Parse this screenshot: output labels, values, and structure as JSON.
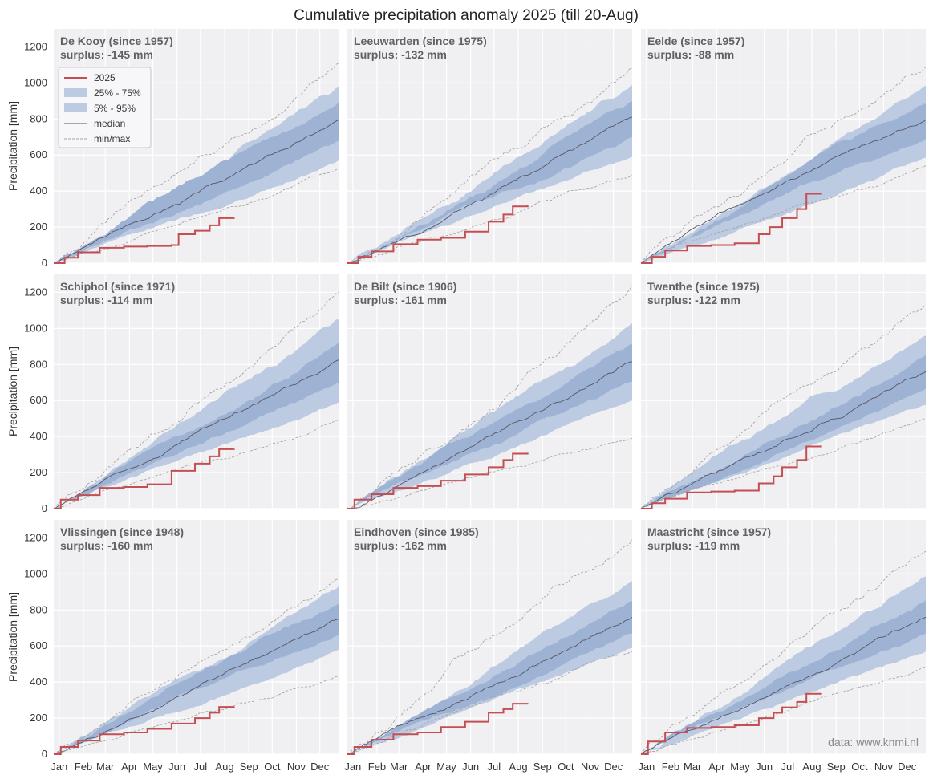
{
  "figure": {
    "title": "Cumulative precipitation anomaly 2025 (till 20-Aug)",
    "ylabel": "Precipitation [mm]",
    "watermark": "data: www.knmi.nl",
    "surplus_prefix": "surplus: ",
    "months": [
      "Jan",
      "Feb",
      "Mar",
      "Apr",
      "May",
      "Jun",
      "Jul",
      "Aug",
      "Sep",
      "Oct",
      "Nov",
      "Dec"
    ],
    "yticks": [
      0,
      200,
      400,
      600,
      800,
      1000,
      1200
    ],
    "legend": [
      {
        "key": "obs",
        "label": "2025"
      },
      {
        "key": "iqr",
        "label": "25% - 75%"
      },
      {
        "key": "p90",
        "label": " 5% - 95%"
      },
      {
        "key": "median",
        "label": "median"
      },
      {
        "key": "minmax",
        "label": "min/max"
      }
    ],
    "colors": {
      "background": "#ffffff",
      "panel": "#f0f0f3",
      "grid": "#ffffff",
      "band_outer": "#bccbe2",
      "band_inner": "#9eb3d4",
      "median": "#555566",
      "minmax": "#a5a5a5",
      "obs": "#c44e52",
      "text": "#333333",
      "label": "#616161"
    }
  },
  "chart_data": [
    {
      "type": "line",
      "station": "De Kooy",
      "since": "(since 1957)",
      "surplus": "-145 mm",
      "xlabel": "",
      "ylabel": "Precipitation [mm]",
      "ylim": [
        0,
        1300
      ],
      "median_end": 795,
      "p25_end": 680,
      "p75_end": 890,
      "p5_end": 570,
      "p95_end": 975,
      "min_end": 520,
      "max_end": 1110,
      "obs_dates": [
        "2025-01-01",
        "2025-01-15",
        "2025-02-01",
        "2025-03-01",
        "2025-04-01",
        "2025-05-01",
        "2025-06-01",
        "2025-06-10",
        "2025-07-01",
        "2025-07-20",
        "2025-08-01",
        "2025-08-20"
      ],
      "obs_values": [
        0,
        30,
        60,
        85,
        92,
        95,
        100,
        160,
        180,
        210,
        250,
        252
      ]
    },
    {
      "type": "line",
      "station": "Leeuwarden",
      "since": "(since 1975)",
      "surplus": "-132 mm",
      "xlabel": "",
      "ylabel": "Precipitation [mm]",
      "ylim": [
        0,
        1300
      ],
      "median_end": 810,
      "p25_end": 700,
      "p75_end": 900,
      "p5_end": 590,
      "p95_end": 990,
      "min_end": 490,
      "max_end": 1080,
      "obs_dates": [
        "2025-01-01",
        "2025-01-15",
        "2025-02-01",
        "2025-03-01",
        "2025-04-01",
        "2025-05-01",
        "2025-06-01",
        "2025-07-01",
        "2025-07-20",
        "2025-08-01",
        "2025-08-20"
      ],
      "obs_values": [
        0,
        35,
        65,
        105,
        130,
        140,
        175,
        230,
        270,
        315,
        322
      ]
    },
    {
      "type": "line",
      "station": "Eelde",
      "since": "(since 1957)",
      "surplus": "-88 mm",
      "xlabel": "",
      "ylabel": "Precipitation [mm]",
      "ylim": [
        0,
        1300
      ],
      "median_end": 795,
      "p25_end": 690,
      "p75_end": 885,
      "p5_end": 585,
      "p95_end": 985,
      "min_end": 540,
      "max_end": 1090,
      "obs_dates": [
        "2025-01-01",
        "2025-01-15",
        "2025-02-01",
        "2025-03-01",
        "2025-04-01",
        "2025-05-01",
        "2025-06-01",
        "2025-06-15",
        "2025-07-01",
        "2025-07-20",
        "2025-08-01",
        "2025-08-20"
      ],
      "obs_values": [
        0,
        35,
        70,
        95,
        100,
        110,
        160,
        200,
        250,
        300,
        385,
        388
      ]
    },
    {
      "type": "line",
      "station": "Schiphol",
      "since": "(since 1971)",
      "surplus": "-114 mm",
      "xlabel": "",
      "ylabel": "Precipitation [mm]",
      "ylim": [
        0,
        1300
      ],
      "median_end": 825,
      "p25_end": 700,
      "p75_end": 920,
      "p5_end": 590,
      "p95_end": 1050,
      "min_end": 490,
      "max_end": 1200,
      "obs_dates": [
        "2025-01-01",
        "2025-01-10",
        "2025-02-01",
        "2025-03-01",
        "2025-04-01",
        "2025-05-01",
        "2025-06-01",
        "2025-07-01",
        "2025-07-20",
        "2025-08-01",
        "2025-08-20"
      ],
      "obs_values": [
        0,
        50,
        75,
        115,
        120,
        135,
        210,
        250,
        290,
        330,
        332
      ]
    },
    {
      "type": "line",
      "station": "De Bilt",
      "since": "(since 1906)",
      "surplus": "-161 mm",
      "xlabel": "",
      "ylabel": "Precipitation [mm]",
      "ylim": [
        0,
        1300
      ],
      "median_end": 815,
      "p25_end": 705,
      "p75_end": 915,
      "p5_end": 600,
      "p95_end": 1030,
      "min_end": 390,
      "max_end": 1240,
      "obs_dates": [
        "2025-01-01",
        "2025-01-10",
        "2025-02-01",
        "2025-03-01",
        "2025-04-01",
        "2025-05-01",
        "2025-06-01",
        "2025-07-01",
        "2025-07-20",
        "2025-08-01",
        "2025-08-20"
      ],
      "obs_values": [
        0,
        50,
        80,
        115,
        125,
        155,
        190,
        230,
        270,
        305,
        310
      ]
    },
    {
      "type": "line",
      "station": "Twenthe",
      "since": "(since 1975)",
      "surplus": "-122 mm",
      "xlabel": "",
      "ylabel": "Precipitation [mm]",
      "ylim": [
        0,
        1300
      ],
      "median_end": 760,
      "p25_end": 665,
      "p75_end": 855,
      "p5_end": 575,
      "p95_end": 960,
      "min_end": 500,
      "max_end": 1130,
      "obs_dates": [
        "2025-01-01",
        "2025-01-15",
        "2025-02-01",
        "2025-03-01",
        "2025-04-01",
        "2025-05-01",
        "2025-06-01",
        "2025-06-20",
        "2025-07-01",
        "2025-07-20",
        "2025-08-01",
        "2025-08-20"
      ],
      "obs_values": [
        0,
        30,
        55,
        90,
        95,
        100,
        140,
        180,
        230,
        270,
        345,
        350
      ]
    },
    {
      "type": "line",
      "station": "Vlissingen",
      "since": "(since 1948)",
      "surplus": "-160 mm",
      "xlabel": "",
      "ylabel": "Precipitation [mm]",
      "ylim": [
        0,
        1300
      ],
      "median_end": 750,
      "p25_end": 660,
      "p75_end": 835,
      "p5_end": 580,
      "p95_end": 930,
      "min_end": 430,
      "max_end": 970,
      "obs_dates": [
        "2025-01-01",
        "2025-01-10",
        "2025-02-01",
        "2025-03-01",
        "2025-04-01",
        "2025-05-01",
        "2025-06-01",
        "2025-07-01",
        "2025-07-20",
        "2025-08-01",
        "2025-08-20"
      ],
      "obs_values": [
        0,
        40,
        75,
        110,
        120,
        140,
        170,
        200,
        230,
        262,
        265
      ]
    },
    {
      "type": "line",
      "station": "Eindhoven",
      "since": "(since 1985)",
      "surplus": "-162 mm",
      "xlabel": "",
      "ylabel": "Precipitation [mm]",
      "ylim": [
        0,
        1300
      ],
      "median_end": 760,
      "p25_end": 670,
      "p75_end": 850,
      "p5_end": 590,
      "p95_end": 960,
      "min_end": 570,
      "max_end": 1190,
      "obs_dates": [
        "2025-01-01",
        "2025-01-10",
        "2025-02-01",
        "2025-03-01",
        "2025-04-01",
        "2025-05-01",
        "2025-06-01",
        "2025-07-01",
        "2025-07-20",
        "2025-08-01",
        "2025-08-20"
      ],
      "obs_values": [
        0,
        40,
        80,
        110,
        120,
        150,
        180,
        230,
        250,
        280,
        283
      ]
    },
    {
      "type": "line",
      "station": "Maastricht",
      "since": "(since 1957)",
      "surplus": "-119 mm",
      "xlabel": "",
      "ylabel": "Precipitation [mm]",
      "ylim": [
        0,
        1300
      ],
      "median_end": 760,
      "p25_end": 670,
      "p75_end": 855,
      "p5_end": 570,
      "p95_end": 985,
      "min_end": 480,
      "max_end": 1125,
      "obs_dates": [
        "2025-01-01",
        "2025-01-10",
        "2025-02-01",
        "2025-03-01",
        "2025-04-01",
        "2025-05-01",
        "2025-06-01",
        "2025-06-20",
        "2025-07-01",
        "2025-07-20",
        "2025-08-01",
        "2025-08-20"
      ],
      "obs_values": [
        0,
        70,
        120,
        145,
        150,
        160,
        200,
        230,
        260,
        290,
        335,
        338
      ]
    }
  ]
}
